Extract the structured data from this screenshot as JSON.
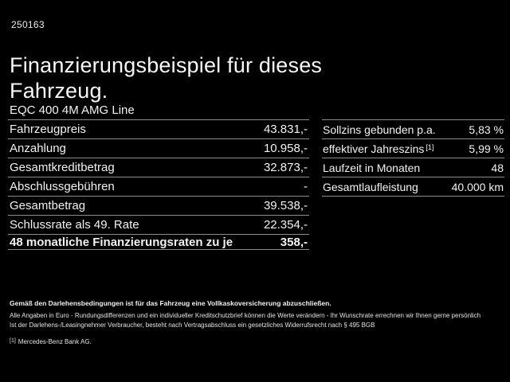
{
  "colors": {
    "background": "#000000",
    "text": "#f4f4f4",
    "divider": "#8c8c8c"
  },
  "header": {
    "job_number": "250163",
    "title": "Finanzierungsbeispiel für dieses Fahrzeug."
  },
  "vehicle": {
    "model": "EQC 400 4M AMG Line"
  },
  "finance_table": {
    "rows": [
      {
        "label": "Fahrzeugpreis",
        "value": "43.831,-"
      },
      {
        "label": "Anzahlung",
        "value": "10.958,-"
      },
      {
        "label": "Gesamtkreditbetrag",
        "value": "32.873,-"
      },
      {
        "label": "Abschlussgebühren",
        "value": "-"
      },
      {
        "label": "Gesamtbetrag",
        "value": "39.538,-"
      },
      {
        "label": "Schlussrate als 49. Rate",
        "value": "22.354,-"
      },
      {
        "label": "48 monatliche Finanzierungsraten zu je",
        "value": "358,-"
      }
    ]
  },
  "conditions_table": {
    "rows": [
      {
        "label": "Sollzins gebunden p.a.",
        "marker": "",
        "value": "5,83 %"
      },
      {
        "label": "effektiver Jahreszins",
        "marker": "[1]",
        "value": "5,99 %"
      },
      {
        "label": "Laufzeit in Monaten",
        "marker": "",
        "value": "48"
      },
      {
        "label": "Gesamtlaufleistung",
        "marker": "",
        "value": "40.000 km"
      }
    ]
  },
  "footnotes": {
    "insurance_note": "Gemäß den Darlehensbedingungen ist für das Fahrzeug eine Vollkaskoversicherung abzuschließen.",
    "euro_note": "Alle Angaben in Euro - Rundungsdifferenzen und ein individueller Kreditschutzbrief können die Werte verändern - Ihr Wunschrate errechnen wir Ihnen gerne persönlich",
    "withdrawal_note": "Ist der Darlehens-/Leasingnehmer Verbraucher, besteht nach Vertragsabschluss ein gesetzliches Widerrufsrecht nach § 495 BGB",
    "bank_marker": "[1]",
    "bank_note": "Mercedes-Benz Bank AG."
  }
}
